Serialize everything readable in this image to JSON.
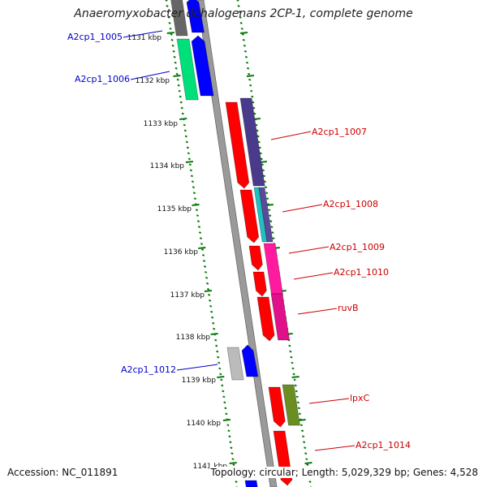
{
  "title": "Anaeromyxobacter dehalogenans 2CP-1, complete genome",
  "footer": {
    "accession": "Accession: NC_011891",
    "summary": "Topology: circular; Length: 5,029,329 bp; Genes: 4,528"
  },
  "colors": {
    "backbone": "#808080",
    "ticks": "#0a7a0a",
    "label_forward": "#0000cc",
    "label_reverse": "#cc0000"
  },
  "scale_labels": [
    "1131 kbp",
    "1132 kbp",
    "1133 kbp",
    "1134 kbp",
    "1135 kbp",
    "1136 kbp",
    "1137 kbp",
    "1138 kbp",
    "1139 kbp",
    "1140 kbp",
    "1141 kbp"
  ],
  "features_forward": [
    {
      "label": "A2cp1_1005",
      "color": "#0000ff"
    },
    {
      "label": "A2cp1_1006",
      "color": "#0000ff"
    },
    {
      "label": "A2cp1_1012",
      "color": "#0000ff"
    }
  ],
  "features_reverse": [
    {
      "label": "A2cp1_1007",
      "color": "#ff0000"
    },
    {
      "label": "A2cp1_1008",
      "color": "#ff0000"
    },
    {
      "label": "A2cp1_1009",
      "color": "#ff0000"
    },
    {
      "label": "A2cp1_1010",
      "color": "#ff0000"
    },
    {
      "label": "ruvB",
      "color": "#ff0000"
    },
    {
      "label": "lpxC",
      "color": "#ff0000"
    },
    {
      "label": "A2cp1_1014",
      "color": "#ff0000"
    }
  ]
}
